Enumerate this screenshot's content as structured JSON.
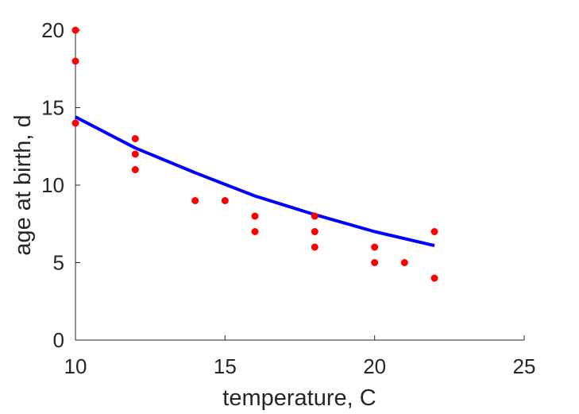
{
  "chart_data": {
    "type": "scatter",
    "xlabel": "temperature, C",
    "ylabel": "age at birth, d",
    "xlim": [
      10,
      25
    ],
    "ylim": [
      0,
      20
    ],
    "xticks": [
      "10",
      "15",
      "20",
      "25"
    ],
    "yticks": [
      "0",
      "5",
      "10",
      "15",
      "20"
    ],
    "grid": false,
    "legend": "none",
    "series": [
      {
        "kind": "points",
        "color": "#ff0000",
        "x": [
          10,
          10,
          10,
          12,
          12,
          12,
          14,
          15,
          16,
          16,
          18,
          18,
          18,
          20,
          20,
          21,
          22,
          22
        ],
        "y": [
          20,
          18,
          14,
          13,
          12,
          11,
          9,
          9,
          8,
          7,
          8,
          7,
          6,
          6,
          5,
          5,
          7,
          4
        ]
      },
      {
        "kind": "fit-line",
        "color": "#0000ff",
        "x": [
          10,
          12,
          14,
          16,
          18,
          20,
          22
        ],
        "y": [
          14.4,
          12.4,
          10.8,
          9.3,
          8.1,
          7.0,
          6.1
        ]
      }
    ]
  }
}
